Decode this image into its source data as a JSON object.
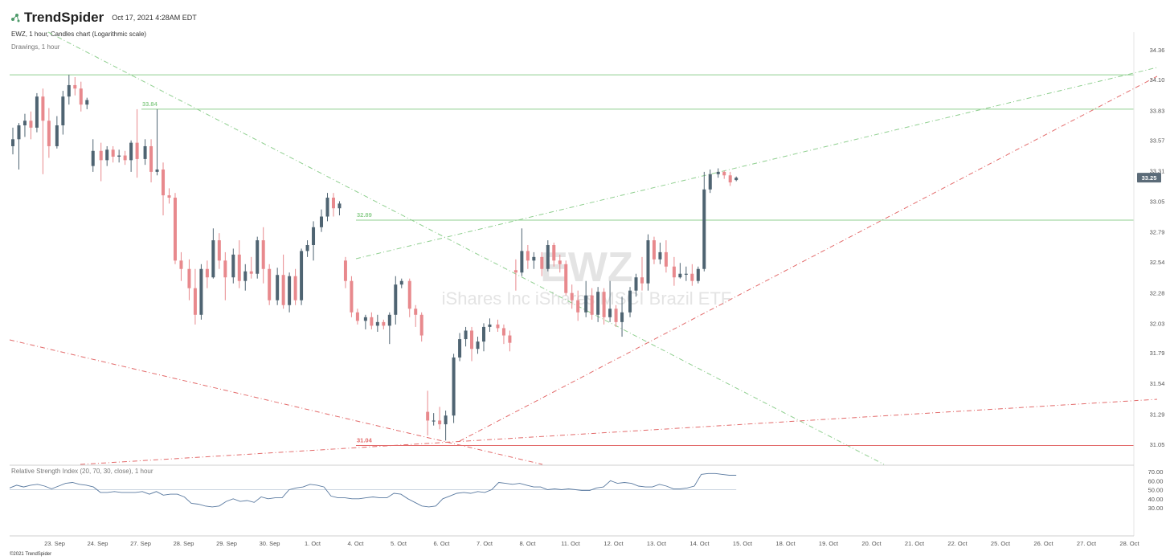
{
  "header": {
    "brand": "TrendSpider",
    "datetime": "Oct 17, 2021 4:28AM EDT",
    "chart_info": "EWZ, 1 hour, Candles chart (Logarithmic scale)",
    "drawings": "Drawings, 1 hour",
    "rsi_info": "Relative Strength Index (20, 70, 30, close), 1 hour",
    "footer": "©2021 TrendSpider"
  },
  "watermark": {
    "ticker": "EWZ",
    "name": "iShares Inc iShares MSCI Brazil ETF"
  },
  "colors": {
    "up": "#4f6472",
    "down": "#e8898d",
    "support_green": "#8fcf8f",
    "resistance_red": "#e36b6b",
    "price_tag": "#5b6b78",
    "rsi_line": "#5a7aa0"
  },
  "chart_data": {
    "type": "candlestick",
    "scale": "log",
    "price_axis_ticks": [
      "34.36",
      "34.10",
      "33.83",
      "33.57",
      "33.31",
      "33.05",
      "32.79",
      "32.54",
      "32.28",
      "32.03",
      "31.79",
      "31.54",
      "31.29",
      "31.05"
    ],
    "last_price": "33.25",
    "x_ticks": [
      "23. Sep",
      "24. Sep",
      "27. Sep",
      "28. Sep",
      "29. Sep",
      "30. Sep",
      "1. Oct",
      "4. Oct",
      "5. Oct",
      "6. Oct",
      "7. Oct",
      "8. Oct",
      "11. Oct",
      "12. Oct",
      "13. Oct",
      "14. Oct",
      "15. Oct",
      "18. Oct",
      "19. Oct",
      "20. Oct",
      "21. Oct",
      "22. Oct",
      "25. Oct",
      "26. Oct",
      "27. Oct",
      "28. Oct"
    ],
    "levels": [
      {
        "label": "",
        "value": 34.14,
        "color": "green"
      },
      {
        "label": "33.84",
        "value": 33.84,
        "color": "green"
      },
      {
        "label": "32.89",
        "value": 32.89,
        "color": "green"
      },
      {
        "label": "31.04",
        "value": 31.04,
        "color": "red"
      }
    ],
    "candles": [
      {
        "o": 33.52,
        "h": 33.68,
        "l": 33.45,
        "c": 33.58
      },
      {
        "o": 33.58,
        "h": 33.72,
        "l": 33.32,
        "c": 33.7
      },
      {
        "o": 33.7,
        "h": 33.8,
        "l": 33.6,
        "c": 33.74
      },
      {
        "o": 33.74,
        "h": 33.82,
        "l": 33.58,
        "c": 33.68
      },
      {
        "o": 33.68,
        "h": 33.98,
        "l": 33.64,
        "c": 33.95
      },
      {
        "o": 33.95,
        "h": 34.02,
        "l": 33.28,
        "c": 33.74
      },
      {
        "o": 33.74,
        "h": 33.85,
        "l": 33.42,
        "c": 33.52
      },
      {
        "o": 33.52,
        "h": 33.78,
        "l": 33.5,
        "c": 33.7
      },
      {
        "o": 33.7,
        "h": 34.0,
        "l": 33.62,
        "c": 33.95
      },
      {
        "o": 33.95,
        "h": 34.14,
        "l": 33.88,
        "c": 34.05
      },
      {
        "o": 34.05,
        "h": 34.12,
        "l": 33.96,
        "c": 34.02
      },
      {
        "o": 34.02,
        "h": 34.08,
        "l": 33.82,
        "c": 33.88
      },
      {
        "o": 33.88,
        "h": 33.94,
        "l": 33.84,
        "c": 33.92
      },
      {
        "o": 33.35,
        "h": 33.58,
        "l": 33.3,
        "c": 33.48
      },
      {
        "o": 33.48,
        "h": 33.55,
        "l": 33.22,
        "c": 33.4
      },
      {
        "o": 33.4,
        "h": 33.52,
        "l": 33.35,
        "c": 33.49
      },
      {
        "o": 33.49,
        "h": 33.52,
        "l": 33.38,
        "c": 33.43
      },
      {
        "o": 33.43,
        "h": 33.49,
        "l": 33.38,
        "c": 33.44
      },
      {
        "o": 33.44,
        "h": 33.48,
        "l": 33.36,
        "c": 33.4
      },
      {
        "o": 33.4,
        "h": 33.57,
        "l": 33.3,
        "c": 33.55
      },
      {
        "o": 33.55,
        "h": 33.84,
        "l": 33.25,
        "c": 33.41
      },
      {
        "o": 33.41,
        "h": 33.58,
        "l": 33.36,
        "c": 33.52
      },
      {
        "o": 33.52,
        "h": 33.58,
        "l": 33.21,
        "c": 33.3
      },
      {
        "o": 33.3,
        "h": 33.84,
        "l": 33.27,
        "c": 33.32
      },
      {
        "o": 33.32,
        "h": 33.38,
        "l": 32.93,
        "c": 33.1
      },
      {
        "o": 33.1,
        "h": 33.16,
        "l": 33.03,
        "c": 33.08
      },
      {
        "o": 33.08,
        "h": 33.12,
        "l": 32.52,
        "c": 32.55
      },
      {
        "o": 32.55,
        "h": 32.62,
        "l": 32.38,
        "c": 32.48
      },
      {
        "o": 32.48,
        "h": 32.56,
        "l": 32.22,
        "c": 32.32
      },
      {
        "o": 32.32,
        "h": 32.48,
        "l": 32.02,
        "c": 32.1
      },
      {
        "o": 32.1,
        "h": 32.52,
        "l": 32.06,
        "c": 32.48
      },
      {
        "o": 32.48,
        "h": 32.55,
        "l": 32.32,
        "c": 32.41
      },
      {
        "o": 32.41,
        "h": 32.82,
        "l": 32.4,
        "c": 32.72
      },
      {
        "o": 32.72,
        "h": 32.78,
        "l": 32.48,
        "c": 32.55
      },
      {
        "o": 32.55,
        "h": 32.62,
        "l": 32.22,
        "c": 32.41
      },
      {
        "o": 32.41,
        "h": 32.65,
        "l": 32.36,
        "c": 32.6
      },
      {
        "o": 32.6,
        "h": 32.72,
        "l": 32.32,
        "c": 32.38
      },
      {
        "o": 32.38,
        "h": 32.52,
        "l": 32.3,
        "c": 32.46
      },
      {
        "o": 32.46,
        "h": 32.58,
        "l": 32.4,
        "c": 32.44
      },
      {
        "o": 32.44,
        "h": 32.75,
        "l": 32.4,
        "c": 32.72
      },
      {
        "o": 32.72,
        "h": 32.83,
        "l": 32.36,
        "c": 32.48
      },
      {
        "o": 32.48,
        "h": 32.52,
        "l": 32.18,
        "c": 32.22
      },
      {
        "o": 32.22,
        "h": 32.49,
        "l": 32.18,
        "c": 32.43
      },
      {
        "o": 32.43,
        "h": 32.6,
        "l": 32.15,
        "c": 32.18
      },
      {
        "o": 32.18,
        "h": 32.45,
        "l": 32.12,
        "c": 32.42
      },
      {
        "o": 32.42,
        "h": 32.48,
        "l": 32.18,
        "c": 32.22
      },
      {
        "o": 32.22,
        "h": 32.65,
        "l": 32.18,
        "c": 32.63
      },
      {
        "o": 32.63,
        "h": 32.72,
        "l": 32.58,
        "c": 32.68
      },
      {
        "o": 32.68,
        "h": 32.88,
        "l": 32.55,
        "c": 32.83
      },
      {
        "o": 32.83,
        "h": 32.98,
        "l": 32.79,
        "c": 32.92
      },
      {
        "o": 32.92,
        "h": 33.12,
        "l": 32.88,
        "c": 33.08
      },
      {
        "o": 33.08,
        "h": 33.12,
        "l": 32.92,
        "c": 32.99
      },
      {
        "o": 32.99,
        "h": 33.05,
        "l": 32.93,
        "c": 33.03
      },
      {
        "o": 32.55,
        "h": 32.58,
        "l": 32.32,
        "c": 32.38
      },
      {
        "o": 32.38,
        "h": 32.42,
        "l": 32.08,
        "c": 32.12
      },
      {
        "o": 32.12,
        "h": 32.15,
        "l": 32.02,
        "c": 32.05
      },
      {
        "o": 32.05,
        "h": 32.1,
        "l": 31.98,
        "c": 32.08
      },
      {
        "o": 32.08,
        "h": 32.12,
        "l": 31.98,
        "c": 32.01
      },
      {
        "o": 32.01,
        "h": 32.1,
        "l": 31.96,
        "c": 32.04
      },
      {
        "o": 32.04,
        "h": 32.06,
        "l": 31.98,
        "c": 32.01
      },
      {
        "o": 32.01,
        "h": 32.12,
        "l": 31.86,
        "c": 32.1
      },
      {
        "o": 32.1,
        "h": 32.42,
        "l": 32.02,
        "c": 32.35
      },
      {
        "o": 32.35,
        "h": 32.4,
        "l": 32.32,
        "c": 32.38
      },
      {
        "o": 32.38,
        "h": 32.4,
        "l": 32.08,
        "c": 32.15
      },
      {
        "o": 32.15,
        "h": 32.18,
        "l": 32.0,
        "c": 32.1
      },
      {
        "o": 32.1,
        "h": 32.12,
        "l": 31.88,
        "c": 31.93
      },
      {
        "o": 31.31,
        "h": 31.48,
        "l": 31.12,
        "c": 31.24
      },
      {
        "o": 31.24,
        "h": 31.3,
        "l": 31.2,
        "c": 31.24
      },
      {
        "o": 31.24,
        "h": 31.35,
        "l": 31.17,
        "c": 31.21
      },
      {
        "o": 31.21,
        "h": 31.32,
        "l": 31.08,
        "c": 31.28
      },
      {
        "o": 31.28,
        "h": 31.78,
        "l": 31.22,
        "c": 31.75
      },
      {
        "o": 31.75,
        "h": 31.95,
        "l": 31.72,
        "c": 31.9
      },
      {
        "o": 31.9,
        "h": 32.0,
        "l": 31.84,
        "c": 31.97
      },
      {
        "o": 31.97,
        "h": 32.0,
        "l": 31.72,
        "c": 31.82
      },
      {
        "o": 31.82,
        "h": 31.92,
        "l": 31.78,
        "c": 31.88
      },
      {
        "o": 31.88,
        "h": 32.03,
        "l": 31.8,
        "c": 32.0
      },
      {
        "o": 32.0,
        "h": 32.07,
        "l": 31.96,
        "c": 32.02
      },
      {
        "o": 32.02,
        "h": 32.06,
        "l": 31.96,
        "c": 31.99
      },
      {
        "o": 31.99,
        "h": 32.02,
        "l": 31.86,
        "c": 31.93
      },
      {
        "o": 31.93,
        "h": 31.97,
        "l": 31.8,
        "c": 31.87
      },
      {
        "o": 32.47,
        "h": 32.56,
        "l": 32.3,
        "c": 32.45
      },
      {
        "o": 32.45,
        "h": 32.82,
        "l": 32.42,
        "c": 32.63
      },
      {
        "o": 32.63,
        "h": 32.68,
        "l": 32.48,
        "c": 32.55
      },
      {
        "o": 32.55,
        "h": 32.62,
        "l": 32.48,
        "c": 32.58
      },
      {
        "o": 32.58,
        "h": 32.62,
        "l": 32.42,
        "c": 32.48
      },
      {
        "o": 32.48,
        "h": 32.72,
        "l": 32.46,
        "c": 32.68
      },
      {
        "o": 32.68,
        "h": 32.7,
        "l": 32.5,
        "c": 32.55
      },
      {
        "o": 32.55,
        "h": 32.6,
        "l": 32.45,
        "c": 32.52
      },
      {
        "o": 32.52,
        "h": 32.55,
        "l": 32.26,
        "c": 32.28
      },
      {
        "o": 32.28,
        "h": 32.35,
        "l": 32.15,
        "c": 32.22
      },
      {
        "o": 32.22,
        "h": 32.3,
        "l": 32.05,
        "c": 32.12
      },
      {
        "o": 32.12,
        "h": 32.38,
        "l": 32.08,
        "c": 32.26
      },
      {
        "o": 32.26,
        "h": 32.32,
        "l": 32.06,
        "c": 32.1
      },
      {
        "o": 32.1,
        "h": 32.33,
        "l": 32.04,
        "c": 32.29
      },
      {
        "o": 32.29,
        "h": 32.32,
        "l": 32.02,
        "c": 32.08
      },
      {
        "o": 32.08,
        "h": 32.38,
        "l": 32.04,
        "c": 32.15
      },
      {
        "o": 32.15,
        "h": 32.18,
        "l": 32.0,
        "c": 32.04
      },
      {
        "o": 32.04,
        "h": 32.25,
        "l": 31.92,
        "c": 32.12
      },
      {
        "o": 32.12,
        "h": 32.33,
        "l": 32.08,
        "c": 32.3
      },
      {
        "o": 32.3,
        "h": 32.44,
        "l": 32.25,
        "c": 32.41
      },
      {
        "o": 32.41,
        "h": 32.58,
        "l": 32.3,
        "c": 32.36
      },
      {
        "o": 32.36,
        "h": 32.77,
        "l": 32.3,
        "c": 32.72
      },
      {
        "o": 32.72,
        "h": 32.75,
        "l": 32.52,
        "c": 32.56
      },
      {
        "o": 32.56,
        "h": 32.7,
        "l": 32.52,
        "c": 32.62
      },
      {
        "o": 32.62,
        "h": 32.72,
        "l": 32.45,
        "c": 32.5
      },
      {
        "o": 32.5,
        "h": 32.58,
        "l": 32.34,
        "c": 32.41
      },
      {
        "o": 32.41,
        "h": 32.53,
        "l": 32.4,
        "c": 32.44
      },
      {
        "o": 32.44,
        "h": 32.5,
        "l": 32.38,
        "c": 32.44
      },
      {
        "o": 32.44,
        "h": 32.52,
        "l": 32.34,
        "c": 32.38
      },
      {
        "o": 32.38,
        "h": 32.5,
        "l": 32.36,
        "c": 32.48
      },
      {
        "o": 32.48,
        "h": 33.3,
        "l": 32.46,
        "c": 33.15
      },
      {
        "o": 33.15,
        "h": 33.32,
        "l": 33.12,
        "c": 33.28
      },
      {
        "o": 33.28,
        "h": 33.33,
        "l": 33.25,
        "c": 33.3
      },
      {
        "o": 33.3,
        "h": 33.31,
        "l": 33.24,
        "c": 33.27
      },
      {
        "o": 33.27,
        "h": 33.3,
        "l": 33.18,
        "c": 33.21
      },
      {
        "o": 33.23,
        "h": 33.26,
        "l": 33.22,
        "c": 33.25
      }
    ],
    "rsi": {
      "axis_ticks": [
        "70.00",
        "60.00",
        "50.00",
        "40.00",
        "30.00"
      ],
      "mid": 50,
      "values": [
        52,
        55,
        53,
        55,
        56,
        54,
        51,
        54,
        57,
        58,
        56,
        55,
        53,
        47,
        47,
        48,
        47,
        47,
        47,
        48,
        45,
        48,
        44,
        45,
        45,
        42,
        35,
        34,
        32,
        31,
        32,
        37,
        40,
        37,
        38,
        36,
        42,
        40,
        41,
        41,
        50,
        52,
        53,
        56,
        55,
        53,
        43,
        41,
        41,
        40,
        40,
        41,
        42,
        41,
        41,
        46,
        45,
        40,
        36,
        32,
        31,
        32,
        40,
        43,
        46,
        47,
        46,
        48,
        47,
        50,
        58,
        57,
        56,
        57,
        55,
        53,
        53,
        50,
        51,
        50,
        51,
        50,
        49,
        49,
        52,
        53,
        60,
        57,
        58,
        57,
        54,
        53,
        53,
        56,
        54,
        51,
        51,
        52,
        54,
        67,
        68,
        68,
        67,
        66,
        66
      ]
    }
  }
}
